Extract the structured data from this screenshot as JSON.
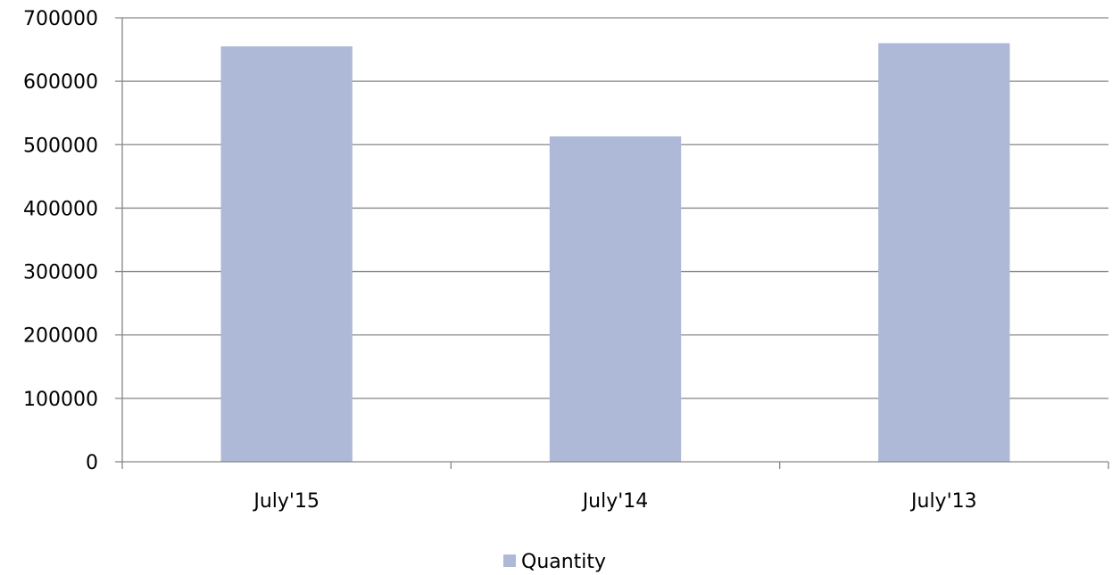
{
  "chart_data": {
    "type": "bar",
    "title": "",
    "xlabel": "",
    "ylabel": "",
    "categories": [
      "July'15",
      "July'14",
      "July'13"
    ],
    "series": [
      {
        "name": "Quantity",
        "values": [
          655000,
          513000,
          660000
        ]
      }
    ],
    "ylim": [
      0,
      700000
    ],
    "yticks": [
      "0",
      "100000",
      "200000",
      "300000",
      "400000",
      "500000",
      "600000",
      "700000"
    ],
    "grid": true,
    "legend": "bottom-center",
    "colors": {
      "bar": "#adb9d6",
      "grid": "#868686"
    }
  }
}
